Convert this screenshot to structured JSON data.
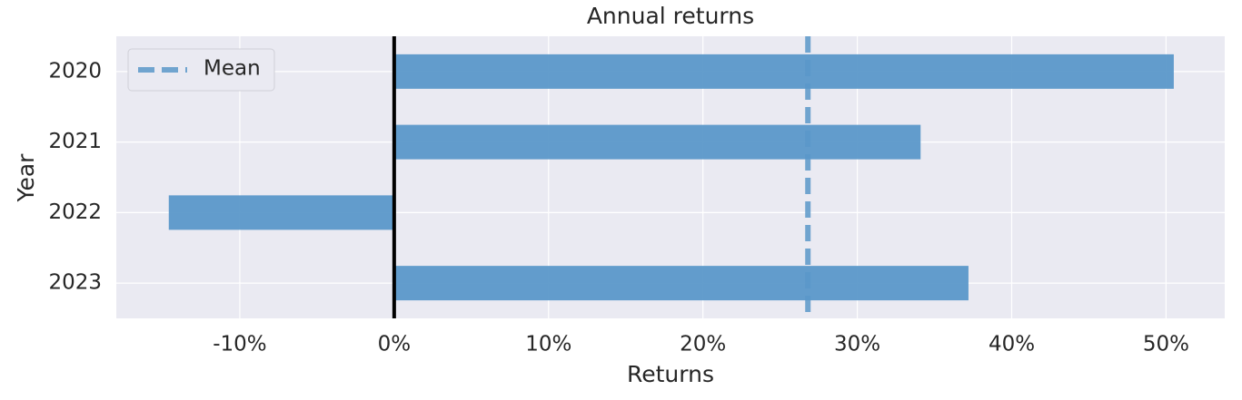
{
  "chart_data": {
    "type": "barh",
    "title": "Annual returns",
    "x_label": "Returns",
    "y_label": "Year",
    "categories": [
      "2020",
      "2021",
      "2022",
      "2023"
    ],
    "values": [
      50.5,
      34.1,
      -14.6,
      37.2
    ],
    "color": "#5b98c9",
    "mean": {
      "name": "Mean",
      "value": 26.8
    },
    "xlim": [
      -18,
      53.8
    ],
    "xticks": [
      {
        "value": -10,
        "label": "-10%"
      },
      {
        "value": 0,
        "label": "0%"
      },
      {
        "value": 10,
        "label": "10%"
      },
      {
        "value": 20,
        "label": "20%"
      },
      {
        "value": 30,
        "label": "30%"
      },
      {
        "value": 40,
        "label": "40%"
      },
      {
        "value": 50,
        "label": "50%"
      }
    ],
    "grid": true,
    "legend": "upper left"
  }
}
